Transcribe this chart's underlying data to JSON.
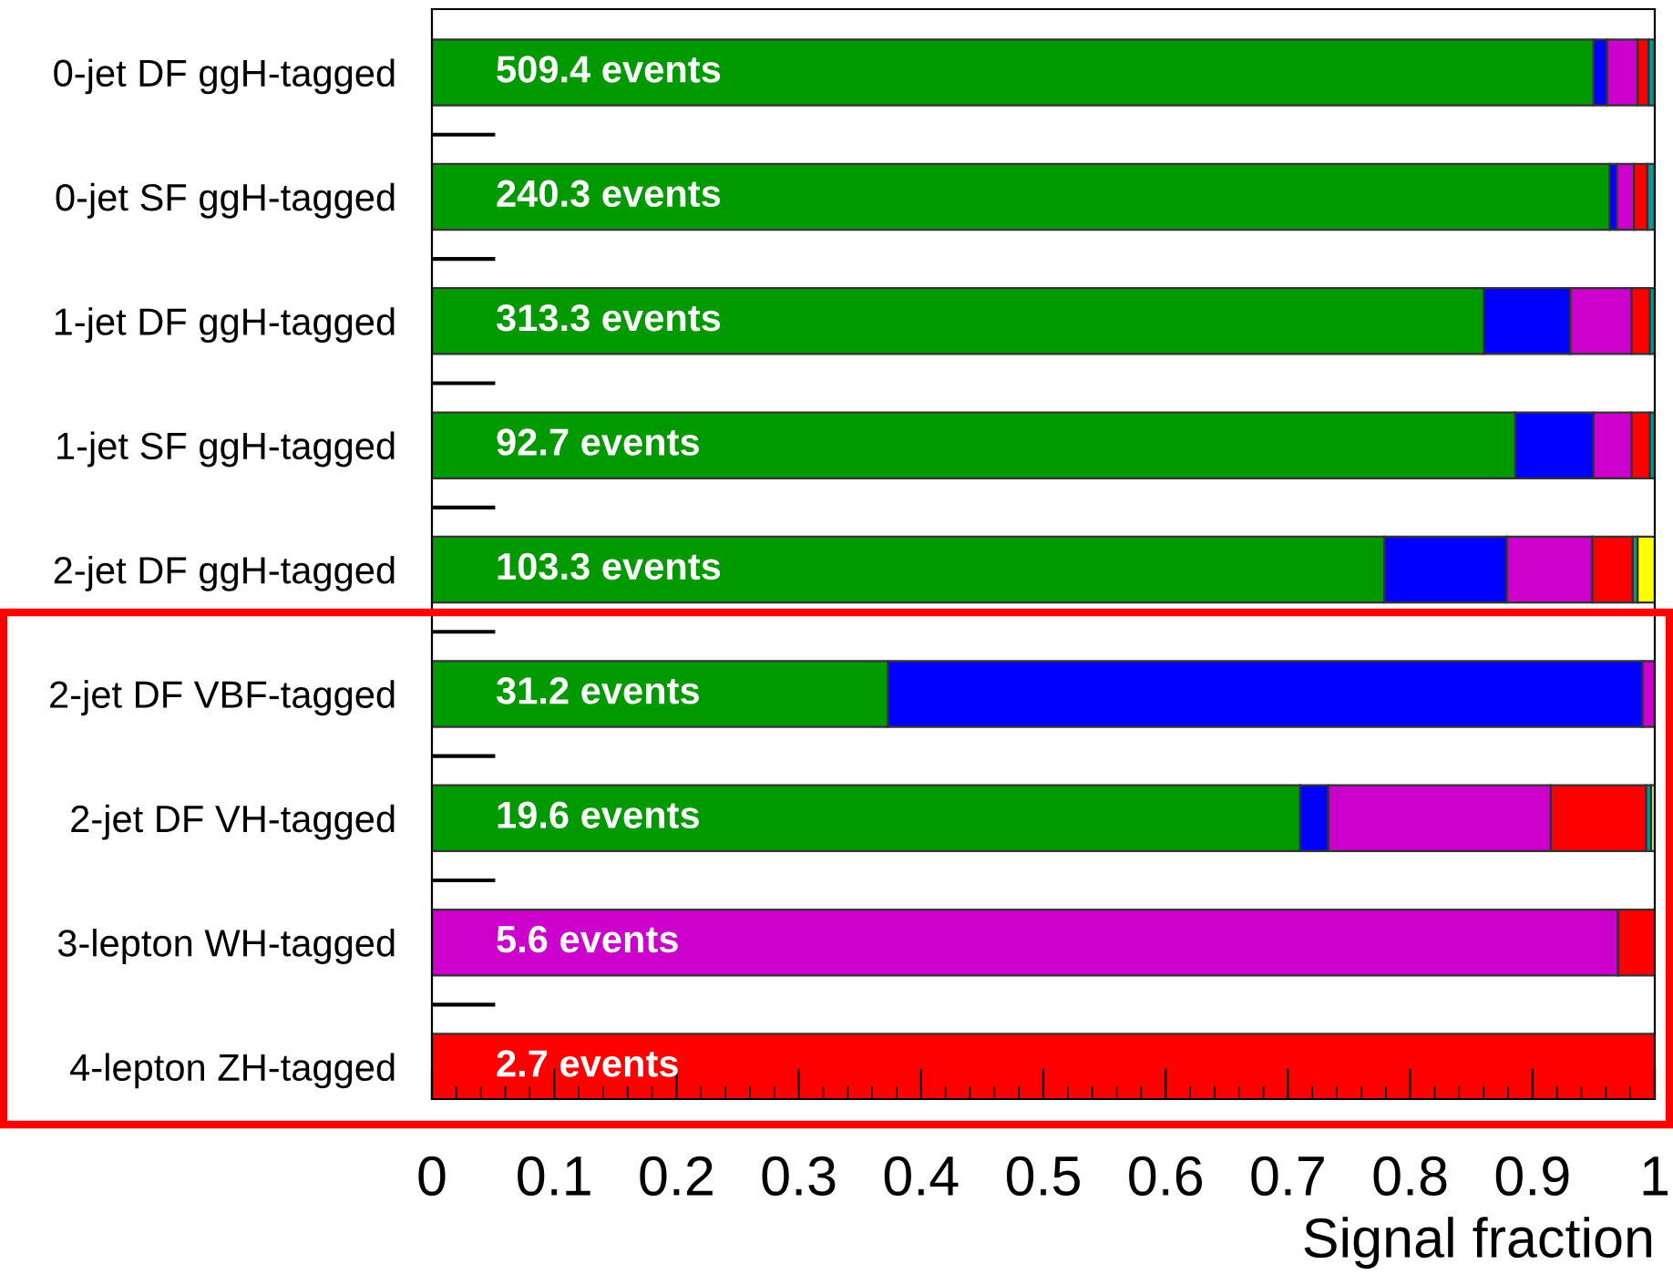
{
  "chart_data": {
    "type": "bar",
    "orientation": "horizontal",
    "stacked": true,
    "xlabel": "Signal fraction",
    "categories": [
      "0-jet DF ggH-tagged",
      "0-jet SF ggH-tagged",
      "1-jet DF ggH-tagged",
      "1-jet SF ggH-tagged",
      "2-jet DF ggH-tagged",
      "2-jet DF VBF-tagged",
      "2-jet DF VH-tagged",
      "3-lepton WH-tagged",
      "4-lepton ZH-tagged"
    ],
    "series": [
      {
        "color": "#009900",
        "values": [
          0.95,
          0.963,
          0.86,
          0.886,
          0.779,
          0.373,
          0.71,
          null,
          null
        ]
      },
      {
        "color": "#0000ff",
        "values": [
          0.011,
          0.006,
          0.071,
          0.064,
          0.1,
          0.617,
          0.023,
          null,
          null
        ]
      },
      {
        "color": "#cc00cc",
        "values": [
          0.025,
          0.014,
          0.05,
          0.031,
          0.07,
          0.01,
          0.182,
          0.97,
          null
        ]
      },
      {
        "color": "#ff0000",
        "values": [
          0.009,
          0.011,
          0.015,
          0.015,
          0.033,
          null,
          0.078,
          0.03,
          1.0
        ]
      },
      {
        "color": "#009999",
        "values": [
          0.005,
          0.006,
          0.004,
          0.004,
          0.004,
          null,
          0.004,
          null,
          null
        ]
      },
      {
        "color": "#ffff00",
        "values": [
          null,
          null,
          null,
          null,
          0.014,
          null,
          0.003,
          null,
          null
        ]
      }
    ],
    "annotations": [
      "509.4 events",
      "240.3 events",
      "313.3 events",
      "92.7 events",
      "103.3 events",
      "31.2 events",
      "19.6 events",
      "5.6 events",
      "2.7 events"
    ],
    "xlim": [
      0,
      1
    ],
    "xticks": [
      0,
      {
        "value": 0.02,
        "label": null
      },
      {
        "value": 0.04,
        "label": null
      },
      {
        "value": 0.06,
        "label": null
      },
      {
        "value": 0.08,
        "label": null
      },
      0.1,
      {
        "value": 0.12,
        "label": null
      },
      {
        "value": 0.14,
        "label": null
      },
      {
        "value": 0.16,
        "label": null
      },
      {
        "value": 0.18,
        "label": null
      },
      0.2,
      {
        "value": 0.22,
        "label": null
      },
      {
        "value": 0.24,
        "label": null
      },
      {
        "value": 0.26,
        "label": null
      },
      {
        "value": 0.28,
        "label": null
      },
      0.3,
      {
        "value": 0.32,
        "label": null
      },
      {
        "value": 0.34,
        "label": null
      },
      {
        "value": 0.36,
        "label": null
      },
      {
        "value": 0.38,
        "label": null
      },
      0.4,
      {
        "value": 0.42,
        "label": null
      },
      {
        "value": 0.44,
        "label": null
      },
      {
        "value": 0.46,
        "label": null
      },
      {
        "value": 0.48,
        "label": null
      },
      0.5,
      {
        "value": 0.52,
        "label": null
      },
      {
        "value": 0.54,
        "label": null
      },
      {
        "value": 0.56,
        "label": null
      },
      {
        "value": 0.58,
        "label": null
      },
      0.6,
      {
        "value": 0.62,
        "label": null
      },
      {
        "value": 0.64,
        "label": null
      },
      {
        "value": 0.66,
        "label": null
      },
      {
        "value": 0.68,
        "label": null
      },
      0.7,
      {
        "value": 0.72,
        "label": null
      },
      {
        "value": 0.74,
        "label": null
      },
      {
        "value": 0.76,
        "label": null
      },
      {
        "value": 0.78,
        "label": null
      },
      0.8,
      {
        "value": 0.82,
        "label": null
      },
      {
        "value": 0.84,
        "label": null
      },
      {
        "value": 0.86,
        "label": null
      },
      {
        "value": 0.88,
        "label": null
      },
      0.9,
      {
        "value": 0.92,
        "label": null
      },
      {
        "value": 0.94,
        "label": null
      },
      {
        "value": 0.96,
        "label": null
      },
      {
        "value": 0.98,
        "label": null
      },
      1
    ],
    "grid": false,
    "legend": false
  }
}
